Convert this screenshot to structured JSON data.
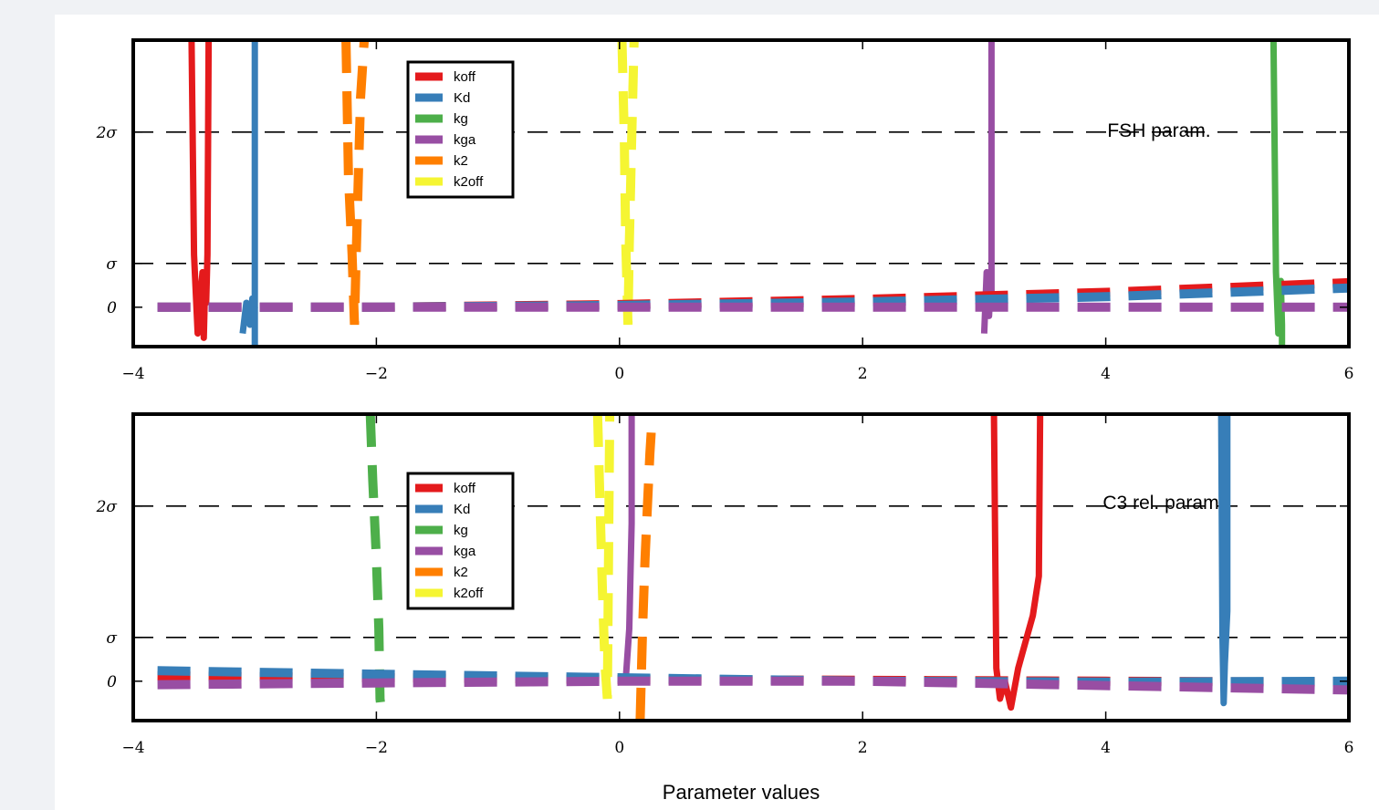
{
  "colors": {
    "koff": "#e41a1c",
    "Kd": "#377eb8",
    "kg": "#4daf4a",
    "kga": "#984ea3",
    "k2": "#ff7f00",
    "k2off": "#f5f532"
  },
  "chart_data": [
    {
      "type": "line",
      "annotation": "FSH param.",
      "xlim": [
        -4,
        6
      ],
      "ylim": [
        -0.45,
        3.05
      ],
      "xticks": [
        -4,
        -2,
        0,
        2,
        4,
        6
      ],
      "xtick_labels": [
        "−4",
        "−2",
        "0",
        "2",
        "4",
        "6"
      ],
      "yticks": [
        0,
        0.5,
        2
      ],
      "ytick_labels": [
        "0",
        "σ",
        "2σ"
      ],
      "hlines": [
        0.5,
        2
      ],
      "legend": {
        "placement": "upper-left",
        "entries": [
          "koff",
          "Kd",
          "kg",
          "kga",
          "k2",
          "k2off"
        ]
      },
      "series": [
        {
          "name": "koff",
          "style": "solid",
          "x": [
            -3.52,
            -3.5,
            -3.47,
            -3.45,
            -3.43,
            -3.42,
            -3.41,
            -3.4,
            -3.39,
            -3.38
          ],
          "y": [
            3.05,
            0.6,
            -0.3,
            0.1,
            0.4,
            -0.35,
            0.2,
            0.05,
            0.6,
            3.05
          ]
        },
        {
          "name": "Kd",
          "style": "solid",
          "x": [
            -3.1,
            -3.07,
            -3.04,
            -3.02,
            -3.0,
            -3.0
          ],
          "y": [
            -0.3,
            0.05,
            -0.2,
            0.1,
            0.0,
            3.05
          ]
        },
        {
          "name": "Kd",
          "style": "solid",
          "x": [
            -3.0,
            -3.0
          ],
          "y": [
            -0.45,
            0.0
          ]
        },
        {
          "name": "k2",
          "style": "dashed",
          "x": [
            -2.25,
            -2.23,
            -2.2,
            -2.18,
            -2.17,
            -2.15,
            -2.13,
            -2.1
          ],
          "y": [
            3.05,
            1.5,
            0.6,
            -0.2,
            0.4,
            1.4,
            2.4,
            3.05
          ]
        },
        {
          "name": "k2off",
          "style": "dashed",
          "x": [
            0.02,
            0.04,
            0.05,
            0.07,
            0.08,
            0.1,
            0.12
          ],
          "y": [
            3.05,
            1.9,
            0.8,
            -0.2,
            0.7,
            1.9,
            3.05
          ]
        },
        {
          "name": "kga",
          "style": "solid",
          "x": [
            3.0,
            3.02,
            3.04,
            3.05,
            3.06,
            3.06
          ],
          "y": [
            -0.3,
            0.4,
            -0.1,
            0.2,
            0.0,
            3.05
          ]
        },
        {
          "name": "kg",
          "style": "solid",
          "x": [
            5.38,
            5.4,
            5.42,
            5.44,
            5.45,
            5.45
          ],
          "y": [
            3.05,
            0.4,
            -0.3,
            0.3,
            -0.2,
            -0.45
          ]
        },
        {
          "name": "koff",
          "style": "dashed",
          "x": [
            -3.8,
            -2,
            0,
            2,
            4,
            6
          ],
          "y": [
            0.0,
            0.0,
            0.03,
            0.09,
            0.17,
            0.28
          ]
        },
        {
          "name": "Kd",
          "style": "dashed",
          "x": [
            -3.8,
            -2,
            0,
            2,
            4,
            6
          ],
          "y": [
            0.0,
            0.0,
            0.02,
            0.06,
            0.12,
            0.22
          ]
        },
        {
          "name": "kga",
          "style": "dashed",
          "x": [
            -3.8,
            -2,
            0,
            2,
            4,
            6
          ],
          "y": [
            0.0,
            0.0,
            0.0,
            0.0,
            0.0,
            0.0
          ]
        }
      ]
    },
    {
      "type": "line",
      "annotation": "C3 rel. param",
      "xlabel": "Parameter values",
      "xlim": [
        -4,
        6
      ],
      "ylim": [
        -0.45,
        3.05
      ],
      "xticks": [
        -4,
        -2,
        0,
        2,
        4,
        6
      ],
      "xtick_labels": [
        "−4",
        "−2",
        "0",
        "2",
        "4",
        "6"
      ],
      "yticks": [
        0,
        0.5,
        2
      ],
      "ytick_labels": [
        "0",
        "σ",
        "2σ"
      ],
      "hlines": [
        0.5,
        2
      ],
      "legend": {
        "placement": "center-left",
        "entries": [
          "koff",
          "Kd",
          "kg",
          "kga",
          "k2",
          "k2off"
        ]
      },
      "series": [
        {
          "name": "kg",
          "style": "dashed",
          "x": [
            -2.05,
            -2.03,
            -2.0,
            -1.98,
            -1.97,
            -1.95
          ],
          "y": [
            3.05,
            2.3,
            1.4,
            0.6,
            -0.2,
            -0.45
          ]
        },
        {
          "name": "k2off",
          "style": "dashed",
          "x": [
            -0.18,
            -0.16,
            -0.14,
            -0.12,
            -0.1,
            -0.08
          ],
          "y": [
            3.05,
            2.0,
            1.0,
            0.2,
            -0.2,
            3.05
          ]
        },
        {
          "name": "kga",
          "style": "solid",
          "x": [
            0.05,
            0.08,
            0.1,
            0.1
          ],
          "y": [
            0.0,
            0.6,
            1.8,
            3.05
          ]
        },
        {
          "name": "k2",
          "style": "dashed",
          "x": [
            0.17,
            0.19,
            0.21,
            0.23,
            0.25,
            0.27
          ],
          "y": [
            -0.45,
            0.6,
            1.4,
            2.0,
            2.6,
            3.05
          ]
        },
        {
          "name": "koff",
          "style": "solid",
          "x": [
            3.08,
            3.1,
            3.13,
            3.17,
            3.22,
            3.28,
            3.34,
            3.4,
            3.45,
            3.46
          ],
          "y": [
            3.05,
            0.15,
            -0.2,
            0.0,
            -0.3,
            0.15,
            0.45,
            0.75,
            1.2,
            3.05
          ]
        },
        {
          "name": "Kd",
          "style": "solid",
          "x": [
            4.95,
            4.96,
            4.97,
            4.98,
            5.0,
            5.0
          ],
          "y": [
            3.05,
            0.5,
            -0.25,
            0.2,
            0.8,
            3.05
          ]
        },
        {
          "name": "koff",
          "style": "dashed",
          "x": [
            -3.8,
            -2,
            0,
            2,
            4,
            6
          ],
          "y": [
            0.06,
            0.04,
            0.02,
            0.01,
            0.0,
            -0.01
          ]
        },
        {
          "name": "Kd",
          "style": "dashed",
          "x": [
            -3.8,
            -2,
            0,
            2,
            4,
            6
          ],
          "y": [
            0.12,
            0.08,
            0.04,
            0.0,
            -0.01,
            0.0
          ]
        },
        {
          "name": "kga",
          "style": "dashed",
          "x": [
            -3.8,
            -2,
            0,
            2,
            4,
            6
          ],
          "y": [
            -0.04,
            -0.02,
            0.0,
            0.0,
            -0.05,
            -0.1
          ]
        }
      ]
    }
  ]
}
